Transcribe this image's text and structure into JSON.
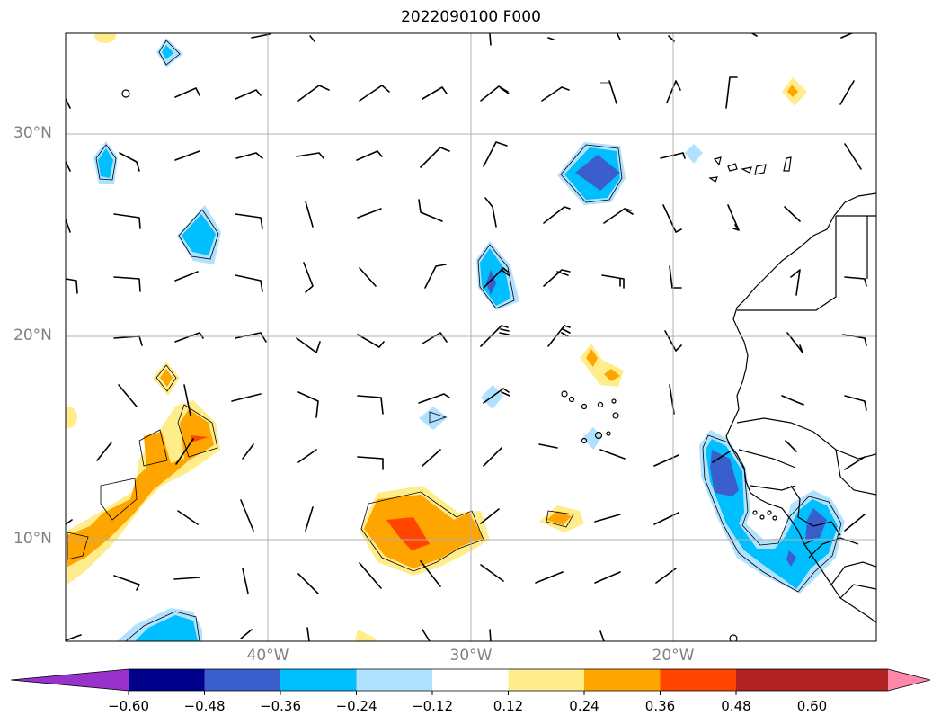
{
  "title": "2022090100 F000",
  "lat_labels": [
    "30°N",
    "20°N",
    "10°N"
  ],
  "lon_labels": [
    "40°W",
    "30°W",
    "20°W"
  ],
  "colorbar": {
    "ticks": [
      "−0.60",
      "−0.48",
      "−0.36",
      "−0.24",
      "−0.12",
      "0.12",
      "0.24",
      "0.36",
      "0.48",
      "0.60"
    ],
    "colors": [
      "#9932cc",
      "#00008b",
      "#3a5fcd",
      "#00bfff",
      "#b0e2ff",
      "#ffffff",
      "#ffec8b",
      "#ffa500",
      "#ff4500",
      "#b22222",
      "#ff88aa"
    ]
  },
  "colors": {
    "light_blue": "#b0e2ff",
    "cyan": "#00bfff",
    "royal_blue": "#3a5fcd",
    "yellow": "#ffec8b",
    "orange": "#ffa500",
    "red_orange": "#ff4500",
    "grid": "#b0b0b0",
    "axis_label": "#808080"
  }
}
